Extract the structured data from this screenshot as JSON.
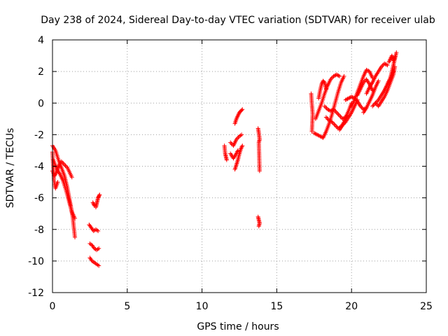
{
  "chart_data": {
    "type": "scatter",
    "title": "Day 238 of 2024, Sidereal Day-to-day VTEC variation (SDTVAR) for receiver ulab",
    "xlabel": "GPS time / hours",
    "ylabel": "SDTVAR / TECUs",
    "xlim": [
      0,
      25
    ],
    "ylim": [
      -12,
      4
    ],
    "xticks": [
      0,
      5,
      10,
      15,
      20,
      25
    ],
    "yticks": [
      -12,
      -10,
      -8,
      -6,
      -4,
      -2,
      0,
      2,
      4
    ],
    "grid": true,
    "marker": "+",
    "color": "#ff0000",
    "series": [
      {
        "name": "SDTVAR",
        "segments": [
          {
            "x": [
              0.0,
              0.2,
              0.4,
              0.6,
              0.8,
              1.0,
              1.2,
              1.35,
              1.5
            ],
            "y": [
              -2.7,
              -3.0,
              -3.6,
              -4.1,
              -4.6,
              -5.4,
              -6.4,
              -7.2,
              -8.5
            ]
          },
          {
            "x": [
              0.05,
              0.3,
              0.5,
              0.7,
              0.9,
              1.1,
              1.3,
              1.5
            ],
            "y": [
              -3.6,
              -4.2,
              -4.5,
              -4.9,
              -5.5,
              -6.2,
              -6.9,
              -7.3
            ]
          },
          {
            "x": [
              0.0,
              0.15,
              0.3,
              0.45,
              0.6,
              0.8,
              1.0,
              1.3
            ],
            "y": [
              -4.3,
              -4.6,
              -4.3,
              -3.9,
              -3.7,
              -3.9,
              -4.1,
              -4.7
            ]
          },
          {
            "x": [
              0.0,
              0.1,
              0.2,
              0.35
            ],
            "y": [
              -3.1,
              -4.9,
              -5.4,
              -5.0
            ]
          },
          {
            "x": [
              2.45,
              2.6,
              2.75,
              2.9,
              3.05
            ],
            "y": [
              -7.7,
              -7.9,
              -8.1,
              -8.0,
              -8.1
            ]
          },
          {
            "x": [
              2.5,
              2.65,
              2.8,
              2.95,
              3.1
            ],
            "y": [
              -8.9,
              -9.0,
              -9.2,
              -9.3,
              -9.2
            ]
          },
          {
            "x": [
              2.5,
              2.65,
              2.8,
              2.95,
              3.1
            ],
            "y": [
              -9.8,
              -10.0,
              -10.1,
              -10.2,
              -10.3
            ]
          },
          {
            "x": [
              2.9,
              2.95,
              3.0,
              3.05,
              3.1,
              3.15
            ],
            "y": [
              -6.6,
              -6.4,
              -6.2,
              -6.0,
              -5.9,
              -5.8
            ]
          },
          {
            "x": [
              2.7,
              2.8
            ],
            "y": [
              -6.3,
              -6.5
            ]
          },
          {
            "x": [
              11.5,
              11.55,
              11.6,
              11.65
            ],
            "y": [
              -2.7,
              -3.2,
              -3.4,
              -3.6
            ]
          },
          {
            "x": [
              11.9,
              12.1,
              12.3,
              12.5,
              12.65
            ],
            "y": [
              -2.5,
              -2.7,
              -2.3,
              -2.1,
              -2.0
            ]
          },
          {
            "x": [
              11.9,
              12.1,
              12.3,
              12.4
            ],
            "y": [
              -3.2,
              -3.5,
              -3.2,
              -3.0
            ]
          },
          {
            "x": [
              12.2,
              12.3,
              12.4,
              12.5,
              12.6,
              12.7
            ],
            "y": [
              -4.2,
              -3.9,
              -3.6,
              -3.2,
              -2.9,
              -2.7
            ]
          },
          {
            "x": [
              12.2,
              12.3,
              12.4,
              12.5,
              12.6,
              12.7
            ],
            "y": [
              -1.3,
              -1.0,
              -0.8,
              -0.6,
              -0.5,
              -0.4
            ]
          },
          {
            "x": [
              13.75,
              13.8,
              13.85,
              13.8,
              13.85
            ],
            "y": [
              -1.6,
              -1.9,
              -2.3,
              -2.5,
              -4.3
            ]
          },
          {
            "x": [
              13.75,
              13.8,
              13.85,
              13.8
            ],
            "y": [
              -7.2,
              -7.4,
              -7.6,
              -7.8
            ]
          },
          {
            "x": [
              17.3,
              17.35,
              17.4,
              17.35
            ],
            "y": [
              0.6,
              -0.1,
              -0.7,
              -1.8
            ]
          },
          {
            "x": [
              17.5,
              17.7,
              17.9,
              18.1,
              18.3,
              18.5,
              18.7,
              18.9,
              19.1,
              19.3,
              19.5
            ],
            "y": [
              -1.9,
              -2.0,
              -2.1,
              -2.2,
              -1.8,
              -1.3,
              -0.7,
              0.0,
              0.7,
              1.3,
              1.7
            ]
          },
          {
            "x": [
              17.6,
              17.8,
              18.0,
              18.2,
              18.4,
              18.6,
              18.8,
              19.0,
              19.2
            ],
            "y": [
              -1.0,
              -0.5,
              0.0,
              0.6,
              1.1,
              1.5,
              1.7,
              1.8,
              1.7
            ]
          },
          {
            "x": [
              17.8,
              17.9,
              18.0,
              18.1,
              18.2,
              18.3
            ],
            "y": [
              0.3,
              0.8,
              1.2,
              1.4,
              1.3,
              0.9
            ]
          },
          {
            "x": [
              18.2,
              18.4,
              18.6,
              18.8,
              19.0,
              19.2,
              19.4,
              19.6,
              19.8,
              20.0
            ],
            "y": [
              -0.2,
              -0.4,
              -0.5,
              -0.4,
              -0.6,
              -0.8,
              -1.0,
              -0.9,
              -0.5,
              0.0
            ]
          },
          {
            "x": [
              18.3,
              18.5,
              18.7,
              18.9,
              19.1,
              19.3,
              19.5,
              19.7
            ],
            "y": [
              -0.9,
              -1.1,
              -1.2,
              -1.4,
              -1.6,
              -1.5,
              -1.2,
              -0.8
            ]
          },
          {
            "x": [
              19.2,
              19.4,
              19.6,
              19.8,
              20.0,
              20.2,
              20.4
            ],
            "y": [
              -1.7,
              -1.4,
              -1.2,
              -0.9,
              -0.6,
              -0.2,
              0.2
            ]
          },
          {
            "x": [
              19.6,
              19.8,
              20.0,
              20.2,
              20.4,
              20.6,
              20.8,
              21.0
            ],
            "y": [
              0.2,
              0.3,
              0.4,
              0.3,
              0.1,
              -0.2,
              -0.4,
              -0.3
            ]
          },
          {
            "x": [
              20.0,
              20.2,
              20.4,
              20.6,
              20.8,
              21.0,
              21.2,
              21.4
            ],
            "y": [
              -0.2,
              0.2,
              0.7,
              1.2,
              1.7,
              2.1,
              2.0,
              1.6
            ]
          },
          {
            "x": [
              20.4,
              20.6,
              20.8,
              21.0,
              21.2,
              21.4
            ],
            "y": [
              0.5,
              0.9,
              1.3,
              1.5,
              1.2,
              0.8
            ]
          },
          {
            "x": [
              20.8,
              21.0,
              21.2,
              21.4,
              21.6,
              21.8
            ],
            "y": [
              -0.6,
              -0.3,
              0.1,
              0.5,
              1.0,
              1.4
            ]
          },
          {
            "x": [
              21.0,
              21.2,
              21.4,
              21.6,
              21.8,
              22.0,
              22.2,
              22.4
            ],
            "y": [
              0.6,
              1.0,
              1.3,
              1.7,
              2.0,
              2.3,
              2.5,
              2.4
            ]
          },
          {
            "x": [
              21.4,
              21.6,
              21.8,
              22.0,
              22.2,
              22.4,
              22.6,
              22.8
            ],
            "y": [
              -0.2,
              0.0,
              0.2,
              0.5,
              0.8,
              1.2,
              1.6,
              2.0
            ]
          },
          {
            "x": [
              21.6,
              21.8,
              22.0,
              22.2,
              22.4,
              22.6,
              22.8,
              22.9
            ],
            "y": [
              0.0,
              -0.2,
              0.1,
              0.4,
              0.8,
              1.3,
              1.8,
              2.3
            ]
          },
          {
            "x": [
              22.2,
              22.4,
              22.6,
              22.7,
              22.8,
              22.9,
              23.0
            ],
            "y": [
              0.8,
              1.2,
              1.6,
              2.0,
              2.4,
              2.8,
              3.2
            ]
          },
          {
            "x": [
              22.5,
              22.6,
              22.7,
              22.8,
              22.9
            ],
            "y": [
              2.6,
              2.8,
              3.0,
              2.7,
              2.9
            ]
          }
        ]
      }
    ]
  }
}
